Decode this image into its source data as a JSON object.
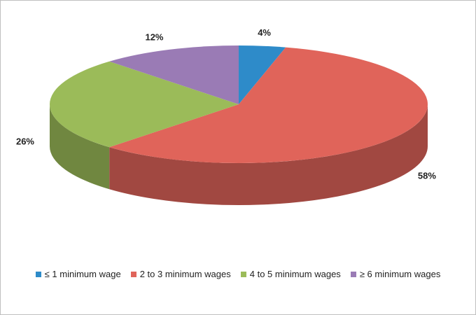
{
  "chart_data": {
    "type": "pie3d",
    "categories": [
      "≤ 1 minimum wage",
      "2 to 3 minimum wages",
      "4 to 5 minimum wages",
      "≥ 6 minimum wages"
    ],
    "values": [
      4,
      58,
      26,
      12
    ],
    "value_labels": [
      "4%",
      "58%",
      "26%",
      "12%"
    ],
    "colors": [
      "#2e8bc9",
      "#e0645a",
      "#9bbb59",
      "#9a7bb5"
    ],
    "legend": "bottom"
  }
}
